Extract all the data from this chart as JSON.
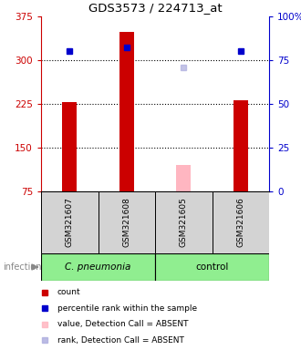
{
  "title": "GDS3573 / 224713_at",
  "samples": [
    "GSM321607",
    "GSM321608",
    "GSM321605",
    "GSM321606"
  ],
  "bar_values": [
    228,
    348,
    120,
    232
  ],
  "bar_colors_present": [
    "#cc0000",
    "#cc0000",
    null,
    "#cc0000"
  ],
  "bar_colors_absent": [
    null,
    null,
    "#ffb6c1",
    null
  ],
  "dot_values_present": [
    315,
    322,
    null,
    315
  ],
  "dot_colors_present": [
    "#0000cc",
    "#0000cc",
    null,
    "#0000cc"
  ],
  "dot_values_absent": [
    null,
    null,
    288,
    null
  ],
  "dot_colors_absent": [
    null,
    null,
    "#b0b0e0",
    null
  ],
  "ylim_left": [
    75,
    375
  ],
  "ylim_right": [
    0,
    100
  ],
  "yticks_left": [
    75,
    150,
    225,
    300,
    375
  ],
  "yticks_right": [
    0,
    25,
    50,
    75,
    100
  ],
  "ytick_labels_right": [
    "0",
    "25",
    "50",
    "75",
    "100%"
  ],
  "left_axis_color": "#cc0000",
  "right_axis_color": "#0000cc",
  "bar_width": 0.25,
  "sample_box_color": "#d3d3d3",
  "group_spans": [
    {
      "label": "C. pneumonia",
      "start": 0,
      "end": 2,
      "color": "#90EE90",
      "italic": true
    },
    {
      "label": "control",
      "start": 2,
      "end": 4,
      "color": "#90EE90",
      "italic": false
    }
  ],
  "legend_items": [
    {
      "color": "#cc0000",
      "label": "count"
    },
    {
      "color": "#0000cc",
      "label": "percentile rank within the sample"
    },
    {
      "color": "#ffb6c1",
      "label": "value, Detection Call = ABSENT"
    },
    {
      "color": "#b0b0e0",
      "label": "rank, Detection Call = ABSENT"
    }
  ]
}
